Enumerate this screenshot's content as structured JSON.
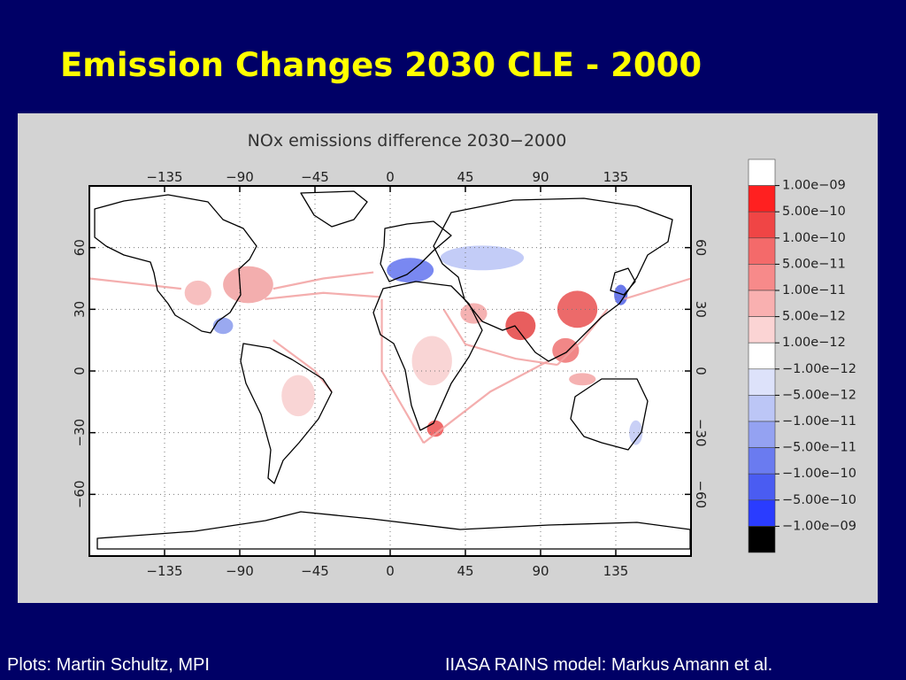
{
  "slide": {
    "title": "Emission Changes 2030 CLE - 2000",
    "footer_left": "Plots: Martin Schultz, MPI",
    "footer_right": "IIASA RAINS model: Markus Amann et al."
  },
  "map": {
    "title": "NOx emissions difference 2030−2000",
    "projection": "equirectangular",
    "lon_ticks": [
      "−135",
      "−90",
      "−45",
      "0",
      "45",
      "90",
      "135"
    ],
    "lon_tick_values": [
      -135,
      -90,
      -45,
      0,
      45,
      90,
      135
    ],
    "lat_ticks": [
      "60",
      "30",
      "0",
      "−30",
      "−60"
    ],
    "lat_tick_values": [
      60,
      30,
      0,
      -30,
      -60
    ],
    "colors": {
      "background": "#000066",
      "panel": "#d3d3d3",
      "increase_strong": "#ee2222",
      "increase_weak": "#f3a0a0",
      "decrease": "#6677ee",
      "coast": "#000000"
    },
    "regions": [
      {
        "name": "north-america-increase",
        "lon": -85,
        "lat": 42,
        "rx": 15,
        "ry": 9,
        "color": "#f2a5a5"
      },
      {
        "name": "us-west-increase",
        "lon": -115,
        "lat": 38,
        "rx": 8,
        "ry": 6,
        "color": "#f6b8b8"
      },
      {
        "name": "mexico-decrease",
        "lon": -100,
        "lat": 22,
        "rx": 6,
        "ry": 4,
        "color": "#8fa0ee"
      },
      {
        "name": "europe-decrease",
        "lon": 12,
        "lat": 49,
        "rx": 14,
        "ry": 6,
        "color": "#6a7bf0"
      },
      {
        "name": "russia-decrease",
        "lon": 55,
        "lat": 55,
        "rx": 25,
        "ry": 6,
        "color": "#bcc6f6"
      },
      {
        "name": "japan-decrease",
        "lon": 138,
        "lat": 37,
        "rx": 4,
        "ry": 5,
        "color": "#5a6ae8"
      },
      {
        "name": "india-increase",
        "lon": 78,
        "lat": 22,
        "rx": 9,
        "ry": 7,
        "color": "#e64c4c"
      },
      {
        "name": "china-increase",
        "lon": 112,
        "lat": 30,
        "rx": 12,
        "ry": 9,
        "color": "#ea5a5a"
      },
      {
        "name": "southeast-asia-increase",
        "lon": 105,
        "lat": 10,
        "rx": 8,
        "ry": 6,
        "color": "#f07a7a"
      },
      {
        "name": "middle-east-increase",
        "lon": 50,
        "lat": 28,
        "rx": 8,
        "ry": 5,
        "color": "#f4aaaa"
      },
      {
        "name": "africa-increase",
        "lon": 25,
        "lat": 5,
        "rx": 12,
        "ry": 12,
        "color": "#f8d0d0"
      },
      {
        "name": "south-africa-increase",
        "lon": 27,
        "lat": -28,
        "rx": 5,
        "ry": 4,
        "color": "#ee5a5a"
      },
      {
        "name": "south-america-increase",
        "lon": -55,
        "lat": -12,
        "rx": 10,
        "ry": 10,
        "color": "#f8d0d0"
      },
      {
        "name": "australia-decrease",
        "lon": 147,
        "lat": -30,
        "rx": 4,
        "ry": 6,
        "color": "#c3cbf5"
      },
      {
        "name": "indonesia-increase",
        "lon": 115,
        "lat": -4,
        "rx": 8,
        "ry": 3,
        "color": "#f4a8a8"
      }
    ],
    "ship_tracks": [
      {
        "name": "north-atlantic-track",
        "points": [
          [
            -70,
            40
          ],
          [
            -40,
            45
          ],
          [
            -10,
            48
          ]
        ]
      },
      {
        "name": "atlantic-to-gibraltar-track",
        "points": [
          [
            -75,
            35
          ],
          [
            -40,
            38
          ],
          [
            -6,
            36
          ]
        ]
      },
      {
        "name": "mediterranean-to-india-track",
        "points": [
          [
            32,
            30
          ],
          [
            45,
            13
          ],
          [
            75,
            6
          ],
          [
            100,
            3
          ]
        ]
      },
      {
        "name": "asia-to-japan-track",
        "points": [
          [
            100,
            3
          ],
          [
            115,
            15
          ],
          [
            130,
            30
          ]
        ]
      },
      {
        "name": "north-pacific-track",
        "points": [
          [
            140,
            35
          ],
          [
            180,
            45
          ]
        ]
      },
      {
        "name": "west-pacific-track",
        "points": [
          [
            -180,
            45
          ],
          [
            -125,
            40
          ]
        ]
      },
      {
        "name": "south-atlantic-track",
        "points": [
          [
            -5,
            35
          ],
          [
            -5,
            0
          ],
          [
            20,
            -35
          ]
        ]
      },
      {
        "name": "cape-to-asia-track",
        "points": [
          [
            20,
            -35
          ],
          [
            60,
            -10
          ],
          [
            95,
            5
          ]
        ]
      },
      {
        "name": "caribbean-to-brazil-track",
        "points": [
          [
            -70,
            15
          ],
          [
            -45,
            0
          ],
          [
            -35,
            -10
          ]
        ]
      }
    ]
  },
  "legend": {
    "labels": [
      "1.00e−09",
      "5.00e−10",
      "1.00e−10",
      "5.00e−11",
      "1.00e−11",
      "5.00e−12",
      "1.00e−12",
      "−1.00e−12",
      "−5.00e−12",
      "−1.00e−11",
      "−5.00e−11",
      "−1.00e−10",
      "−5.00e−10",
      "−1.00e−09"
    ],
    "swatches": [
      "#ffffff",
      "#ff2020",
      "#f04545",
      "#f46a6a",
      "#f78a8a",
      "#f9b0b0",
      "#fbd4d4",
      "#ffffff",
      "#dde2fa",
      "#bcc6f6",
      "#94a2f2",
      "#6a7bf0",
      "#4a5cf2",
      "#2a3cff",
      "#000000"
    ]
  }
}
